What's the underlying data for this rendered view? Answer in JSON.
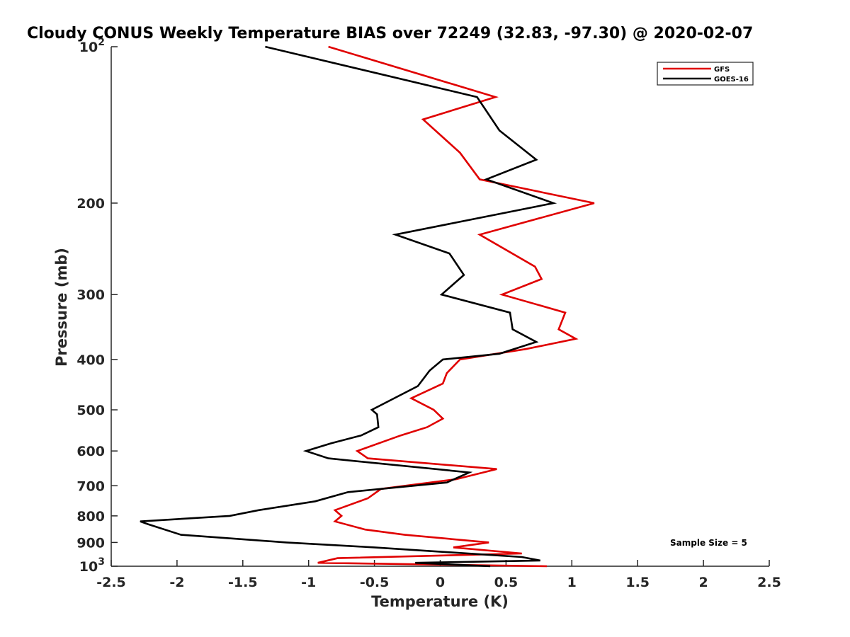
{
  "chart_data": {
    "type": "line",
    "title": "Cloudy CONUS Weekly Temperature BIAS over 72249 (32.83, -97.30) @ 2020-02-07",
    "xlabel": "Temperature (K)",
    "ylabel": "Pressure (mb)",
    "xlim": [
      -2.5,
      2.5
    ],
    "ylim": [
      1000,
      100
    ],
    "y_scale": "log",
    "x_ticks": [
      "-2.5",
      "-2",
      "-1.5",
      "-1",
      "-0.5",
      "0",
      "0.5",
      "1",
      "1.5",
      "2",
      "2.5"
    ],
    "y_ticks": [
      {
        "value": 100,
        "label": "10",
        "sup": "2"
      },
      {
        "value": 200,
        "label": "200"
      },
      {
        "value": 300,
        "label": "300"
      },
      {
        "value": 400,
        "label": "400"
      },
      {
        "value": 500,
        "label": "500"
      },
      {
        "value": 600,
        "label": "600"
      },
      {
        "value": 700,
        "label": "700"
      },
      {
        "value": 800,
        "label": "800"
      },
      {
        "value": 900,
        "label": "900"
      },
      {
        "value": 1000,
        "label": "10",
        "sup": "3"
      }
    ],
    "legend_position": "top-right",
    "grid": false,
    "annotation": "Sample Size = 5",
    "series": [
      {
        "name": "GFS",
        "color": "#e00000",
        "points": [
          {
            "p": 100,
            "t": -0.85
          },
          {
            "p": 125,
            "t": 0.42
          },
          {
            "p": 138,
            "t": -0.13
          },
          {
            "p": 160,
            "t": 0.15
          },
          {
            "p": 180,
            "t": 0.3
          },
          {
            "p": 200,
            "t": 1.17
          },
          {
            "p": 230,
            "t": 0.3
          },
          {
            "p": 265,
            "t": 0.72
          },
          {
            "p": 280,
            "t": 0.77
          },
          {
            "p": 300,
            "t": 0.47
          },
          {
            "p": 325,
            "t": 0.95
          },
          {
            "p": 350,
            "t": 0.9
          },
          {
            "p": 365,
            "t": 1.03
          },
          {
            "p": 382,
            "t": 0.65
          },
          {
            "p": 400,
            "t": 0.15
          },
          {
            "p": 425,
            "t": 0.05
          },
          {
            "p": 445,
            "t": 0.02
          },
          {
            "p": 475,
            "t": -0.22
          },
          {
            "p": 500,
            "t": -0.05
          },
          {
            "p": 520,
            "t": 0.02
          },
          {
            "p": 540,
            "t": -0.1
          },
          {
            "p": 560,
            "t": -0.3
          },
          {
            "p": 600,
            "t": -0.63
          },
          {
            "p": 620,
            "t": -0.55
          },
          {
            "p": 650,
            "t": 0.43
          },
          {
            "p": 680,
            "t": 0.12
          },
          {
            "p": 710,
            "t": -0.45
          },
          {
            "p": 740,
            "t": -0.55
          },
          {
            "p": 780,
            "t": -0.8
          },
          {
            "p": 800,
            "t": -0.75
          },
          {
            "p": 820,
            "t": -0.8
          },
          {
            "p": 850,
            "t": -0.57
          },
          {
            "p": 870,
            "t": -0.27
          },
          {
            "p": 900,
            "t": 0.37
          },
          {
            "p": 920,
            "t": 0.1
          },
          {
            "p": 945,
            "t": 0.62
          },
          {
            "p": 965,
            "t": -0.78
          },
          {
            "p": 985,
            "t": -0.93
          },
          {
            "p": 1000,
            "t": 0.81
          }
        ]
      },
      {
        "name": "GOES-16",
        "color": "#000000",
        "points": [
          {
            "p": 100,
            "t": -1.33
          },
          {
            "p": 125,
            "t": 0.28
          },
          {
            "p": 145,
            "t": 0.45
          },
          {
            "p": 165,
            "t": 0.73
          },
          {
            "p": 180,
            "t": 0.35
          },
          {
            "p": 200,
            "t": 0.86
          },
          {
            "p": 230,
            "t": -0.34
          },
          {
            "p": 250,
            "t": 0.07
          },
          {
            "p": 275,
            "t": 0.18
          },
          {
            "p": 300,
            "t": 0.01
          },
          {
            "p": 325,
            "t": 0.53
          },
          {
            "p": 350,
            "t": 0.55
          },
          {
            "p": 370,
            "t": 0.73
          },
          {
            "p": 390,
            "t": 0.45
          },
          {
            "p": 400,
            "t": 0.02
          },
          {
            "p": 420,
            "t": -0.08
          },
          {
            "p": 450,
            "t": -0.17
          },
          {
            "p": 500,
            "t": -0.52
          },
          {
            "p": 510,
            "t": -0.48
          },
          {
            "p": 540,
            "t": -0.47
          },
          {
            "p": 560,
            "t": -0.6
          },
          {
            "p": 580,
            "t": -0.83
          },
          {
            "p": 600,
            "t": -1.02
          },
          {
            "p": 620,
            "t": -0.85
          },
          {
            "p": 660,
            "t": 0.22
          },
          {
            "p": 690,
            "t": 0.05
          },
          {
            "p": 720,
            "t": -0.7
          },
          {
            "p": 750,
            "t": -0.95
          },
          {
            "p": 780,
            "t": -1.38
          },
          {
            "p": 800,
            "t": -1.6
          },
          {
            "p": 820,
            "t": -2.28
          },
          {
            "p": 830,
            "t": -2.22
          },
          {
            "p": 870,
            "t": -1.97
          },
          {
            "p": 900,
            "t": -1.17
          },
          {
            "p": 920,
            "t": -0.5
          },
          {
            "p": 960,
            "t": 0.62
          },
          {
            "p": 975,
            "t": 0.76
          },
          {
            "p": 985,
            "t": -0.19
          },
          {
            "p": 1000,
            "t": 0.38
          }
        ]
      }
    ]
  }
}
